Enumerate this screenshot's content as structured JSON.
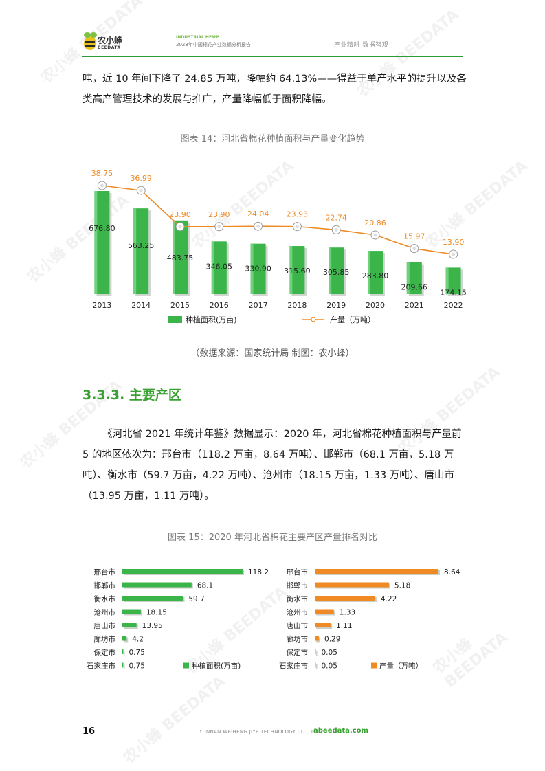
{
  "header": {
    "logo_name": "农小蜂",
    "logo_en": "BEEDATA",
    "report_en": "INDUSTRIAL HEMP",
    "report_cn": "2023年中国棉花产业数据分析报告",
    "slogan": "产业精耕  数据智观"
  },
  "body": {
    "para1": "吨，近 10 年间下降了 24.85 万吨，降幅约 64.13%——得益于单产水平的提升以及各类高产管理技术的发展与推广，产量降幅低于面积降幅。",
    "fig14_title": "图表 14：河北省棉花种植面积与产量变化趋势",
    "source": "（数据来源：国家统计局    制图：农小蜂）",
    "section_title": "3.3.3. 主要产区",
    "para2": "《河北省 2021 年统计年鉴》数据显示：2020 年，河北省棉花种植面积与产量前 5 的地区依次为：邢台市（118.2 万亩，8.64 万吨）、邯郸市（68.1 万亩，5.18 万吨）、衡水市（59.7 万亩，4.22 万吨）、沧州市（18.15 万亩，1.33 万吨）、唐山市（13.95 万亩，1.11 万吨）。",
    "fig15_title": "图表 15：2020 年河北省棉花主要产区产量排名对比"
  },
  "footer": {
    "page": "16",
    "company": "YUNNAN WEIHENG JIYE TECHNOLOGY CO.,LTD.",
    "url": "abeedata.com"
  },
  "watermark": "农小蜂 BEEDATA",
  "colors": {
    "green": "#3bb54a",
    "orange": "#f08a24",
    "accent": "#3ba033"
  },
  "chart_data": [
    {
      "type": "bar+line",
      "title": "图表 14：河北省棉花种植面积与产量变化趋势",
      "categories": [
        "2013",
        "2014",
        "2015",
        "2016",
        "2017",
        "2018",
        "2019",
        "2020",
        "2021",
        "2022"
      ],
      "series": [
        {
          "name": "种植面积(万亩)",
          "type": "bar",
          "values": [
            676.8,
            563.25,
            483.75,
            346.05,
            330.9,
            315.6,
            305.85,
            283.8,
            209.66,
            174.15
          ],
          "labels": [
            "676.80",
            "563.25",
            "483.75",
            "346.05",
            "330.90",
            "315.60",
            "305.85",
            "283.80",
            "209.66",
            "174.15"
          ]
        },
        {
          "name": "产量（万吨）",
          "type": "line",
          "values": [
            38.75,
            36.99,
            23.9,
            23.9,
            24.04,
            23.93,
            22.74,
            20.86,
            15.97,
            13.9
          ],
          "labels": [
            "38.75",
            "36.99",
            "23.90",
            "23.90",
            "24.04",
            "23.93",
            "22.74",
            "20.86",
            "15.97",
            "13.90"
          ]
        }
      ],
      "legend": "bottom"
    },
    {
      "type": "bar",
      "orientation": "horizontal",
      "categories": [
        "邢台市",
        "邯郸市",
        "衡水市",
        "沧州市",
        "唐山市",
        "廊坊市",
        "保定市",
        "石家庄市"
      ],
      "series": [
        {
          "name": "种植面积(万亩)",
          "values": [
            118.2,
            68.1,
            59.7,
            18.15,
            13.95,
            4.2,
            0.75,
            0.75
          ],
          "labels": [
            "118.2",
            "68.1",
            "59.7",
            "18.15",
            "13.95",
            "4.2",
            "0.75",
            "0.75"
          ]
        }
      ],
      "legend": "bottom-right"
    },
    {
      "type": "bar",
      "orientation": "horizontal",
      "categories": [
        "邢台市",
        "邯郸市",
        "衡水市",
        "沧州市",
        "唐山市",
        "廊坊市",
        "保定市",
        "石家庄市"
      ],
      "series": [
        {
          "name": "产量（万吨）",
          "values": [
            8.64,
            5.18,
            4.22,
            1.33,
            1.11,
            0.29,
            0.05,
            0.05
          ],
          "labels": [
            "8.64",
            "5.18",
            "4.22",
            "1.33",
            "1.11",
            "0.29",
            "0.05",
            "0.05"
          ]
        }
      ],
      "legend": "bottom-right"
    }
  ]
}
